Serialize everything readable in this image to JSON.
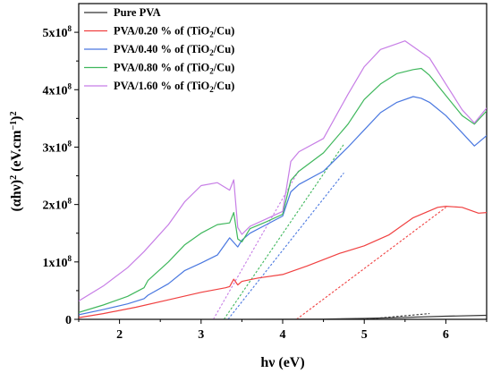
{
  "chart_data": {
    "type": "line",
    "xlabel": "hν (eV)",
    "ylabel_parts": {
      "base": "(αhν)",
      "exp1": "2",
      "unit": " (eV.cm",
      "exp2": "−1",
      "close": ")",
      "exp3": "2"
    },
    "xlim": [
      1.5,
      6.5
    ],
    "ylim": [
      0,
      550000000
    ],
    "x_ticks": [
      {
        "value": 2,
        "label": "2"
      },
      {
        "value": 3,
        "label": "3"
      },
      {
        "value": 4,
        "label": "4"
      },
      {
        "value": 5,
        "label": "5"
      },
      {
        "value": 6,
        "label": "6"
      }
    ],
    "y_ticks": [
      {
        "value": 0,
        "mant": "0",
        "exp": ""
      },
      {
        "value": 100000000,
        "mant": "1x10",
        "exp": "8"
      },
      {
        "value": 200000000,
        "mant": "2x10",
        "exp": "8"
      },
      {
        "value": 300000000,
        "mant": "3x10",
        "exp": "8"
      },
      {
        "value": 400000000,
        "mant": "4x10",
        "exp": "8"
      },
      {
        "value": 500000000,
        "mant": "5x10",
        "exp": "8"
      }
    ],
    "legend_position": "top-left",
    "series": [
      {
        "name": "Pure PVA",
        "legend_parts": [
          "Pure PVA"
        ],
        "color": "#333333",
        "x": [
          1.5,
          2.5,
          3.5,
          4.5,
          5.0,
          5.5,
          6.0,
          6.5
        ],
        "y": [
          0,
          0,
          0,
          500000,
          1500000,
          3500000,
          5500000,
          7000000
        ]
      },
      {
        "name": "PVA/0.20 % of (TiO2/Cu)",
        "legend_parts": [
          "PVA/0.20 % of (TiO",
          "2",
          "/Cu)"
        ],
        "color": "#f04040",
        "x": [
          1.5,
          1.8,
          2.2,
          2.6,
          3.0,
          3.3,
          3.35,
          3.4,
          3.45,
          3.5,
          3.7,
          4.0,
          4.3,
          4.7,
          5.0,
          5.3,
          5.6,
          5.9,
          6.0,
          6.2,
          6.4,
          6.5
        ],
        "y": [
          3000000,
          10000000,
          21000000,
          34000000,
          47000000,
          55000000,
          57000000,
          70000000,
          60000000,
          66000000,
          72000000,
          78000000,
          93000000,
          115000000,
          128000000,
          147000000,
          177000000,
          195000000,
          197000000,
          195000000,
          185000000,
          186000000
        ]
      },
      {
        "name": "PVA/0.40 % of (TiO2/Cu)",
        "legend_parts": [
          "PVA/0.40 % of (TiO",
          "2",
          "/Cu)"
        ],
        "color": "#4a78e0",
        "x": [
          1.5,
          1.8,
          2.1,
          2.3,
          2.35,
          2.6,
          2.8,
          3.0,
          3.2,
          3.35,
          3.45,
          3.5,
          3.6,
          3.8,
          4.0,
          4.1,
          4.2,
          4.5,
          4.8,
          5.0,
          5.2,
          5.4,
          5.6,
          5.7,
          5.8,
          6.0,
          6.2,
          6.35,
          6.5
        ],
        "y": [
          8000000,
          17000000,
          27000000,
          36000000,
          42000000,
          62000000,
          85000000,
          98000000,
          112000000,
          142000000,
          126000000,
          138000000,
          150000000,
          165000000,
          180000000,
          222000000,
          235000000,
          258000000,
          300000000,
          330000000,
          360000000,
          378000000,
          388000000,
          385000000,
          378000000,
          355000000,
          325000000,
          302000000,
          320000000
        ]
      },
      {
        "name": "PVA/0.80 % of (TiO2/Cu)",
        "legend_parts": [
          "PVA/0.80 % of (TiO",
          "2",
          "/Cu)"
        ],
        "color": "#3fb75c",
        "x": [
          1.5,
          1.8,
          2.1,
          2.3,
          2.35,
          2.6,
          2.8,
          3.0,
          3.2,
          3.35,
          3.4,
          3.45,
          3.5,
          3.6,
          3.8,
          4.0,
          4.1,
          4.2,
          4.5,
          4.8,
          5.0,
          5.2,
          5.4,
          5.6,
          5.7,
          5.8,
          6.0,
          6.2,
          6.35,
          6.5
        ],
        "y": [
          12000000,
          25000000,
          40000000,
          55000000,
          68000000,
          100000000,
          130000000,
          150000000,
          165000000,
          168000000,
          186000000,
          140000000,
          135000000,
          158000000,
          170000000,
          183000000,
          242000000,
          258000000,
          290000000,
          340000000,
          383000000,
          410000000,
          428000000,
          435000000,
          437000000,
          425000000,
          390000000,
          355000000,
          340000000,
          363000000
        ]
      },
      {
        "name": "PVA/1.60 % of (TiO2/Cu)",
        "legend_parts": [
          "PVA/1.60 % of (TiO",
          "2",
          "/Cu)"
        ],
        "color": "#c77ee6",
        "x": [
          1.5,
          1.8,
          2.1,
          2.3,
          2.6,
          2.8,
          3.0,
          3.2,
          3.35,
          3.4,
          3.45,
          3.5,
          3.6,
          3.8,
          4.0,
          4.1,
          4.2,
          4.5,
          4.8,
          5.0,
          5.2,
          5.4,
          5.5,
          5.6,
          5.8,
          6.0,
          6.2,
          6.35,
          6.5
        ],
        "y": [
          32000000,
          58000000,
          90000000,
          118000000,
          165000000,
          205000000,
          233000000,
          238000000,
          225000000,
          243000000,
          160000000,
          148000000,
          162000000,
          175000000,
          188000000,
          275000000,
          292000000,
          315000000,
          392000000,
          440000000,
          470000000,
          480000000,
          485000000,
          475000000,
          455000000,
          410000000,
          365000000,
          342000000,
          368000000
        ]
      }
    ],
    "fit_lines": [
      {
        "color": "#333333",
        "x": [
          5.0,
          5.8
        ],
        "y": [
          0,
          10000000
        ]
      },
      {
        "color": "#f04040",
        "x": [
          4.17,
          6.0
        ],
        "y": [
          0,
          195000000
        ]
      },
      {
        "color": "#4a78e0",
        "x": [
          3.33,
          4.75
        ],
        "y": [
          0,
          255000000
        ]
      },
      {
        "color": "#3fb75c",
        "x": [
          3.28,
          4.75
        ],
        "y": [
          0,
          305000000
        ]
      },
      {
        "color": "#c77ee6",
        "x": [
          3.15,
          4.2
        ],
        "y": [
          0,
          260000000
        ]
      }
    ]
  }
}
